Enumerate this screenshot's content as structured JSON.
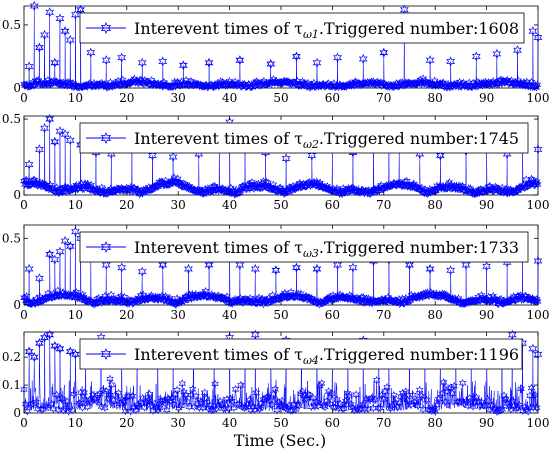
{
  "chart_data": {
    "type": "line",
    "xlabel": "Time (Sec.)",
    "x_ticks": [
      0,
      10,
      20,
      30,
      40,
      50,
      60,
      70,
      80,
      90,
      100
    ],
    "xlim": [
      0,
      100
    ],
    "grid": false,
    "legend_position": "top-right",
    "series_color": "#0000ff",
    "marker": "hexagram",
    "panels": [
      {
        "legend": {
          "prefix": "Interevent times of τ",
          "sub": "ω1",
          "suffix": ".Triggered number:1608"
        },
        "ylim": [
          0,
          0.65
        ],
        "y_ticks": [
          "0",
          "0.5"
        ],
        "y_tick_values": [
          0,
          0.5
        ],
        "triggered_number": 1608,
        "noise_level": 0.045,
        "wave_amp": 0.02,
        "peaks": [
          [
            1,
            0.17
          ],
          [
            2,
            0.65
          ],
          [
            3,
            0.32
          ],
          [
            4,
            0.42
          ],
          [
            5,
            0.6
          ],
          [
            6,
            0.2
          ],
          [
            7,
            0.55
          ],
          [
            8,
            0.45
          ],
          [
            9,
            0.38
          ],
          [
            10,
            0.58
          ],
          [
            11,
            0.62
          ],
          [
            13,
            0.28
          ],
          [
            16,
            0.22
          ],
          [
            19,
            0.24
          ],
          [
            23,
            0.2
          ],
          [
            27,
            0.21
          ],
          [
            31,
            0.18
          ],
          [
            36,
            0.2
          ],
          [
            42,
            0.22
          ],
          [
            48,
            0.19
          ],
          [
            53,
            0.25
          ],
          [
            57,
            0.2
          ],
          [
            61,
            0.24
          ],
          [
            66,
            0.23
          ],
          [
            70,
            0.28
          ],
          [
            74,
            0.62
          ],
          [
            79,
            0.22
          ],
          [
            83,
            0.21
          ],
          [
            88,
            0.25
          ],
          [
            92,
            0.27
          ],
          [
            96,
            0.3
          ],
          [
            99,
            0.45
          ],
          [
            100,
            0.4
          ]
        ]
      },
      {
        "legend": {
          "prefix": "Interevent times of τ",
          "sub": "ω2",
          "suffix": ".Triggered number:1745"
        },
        "ylim": [
          0,
          0.52
        ],
        "y_ticks": [
          "0",
          "0.5"
        ],
        "y_tick_values": [
          0,
          0.5
        ],
        "triggered_number": 1745,
        "noise_level": 0.05,
        "wave_amp": 0.04,
        "peaks": [
          [
            1,
            0.2
          ],
          [
            3,
            0.3
          ],
          [
            4,
            0.44
          ],
          [
            5,
            0.5
          ],
          [
            6,
            0.35
          ],
          [
            7,
            0.42
          ],
          [
            8,
            0.4
          ],
          [
            9,
            0.36
          ],
          [
            11,
            0.33
          ],
          [
            14,
            0.28
          ],
          [
            17,
            0.27
          ],
          [
            21,
            0.3
          ],
          [
            25,
            0.26
          ],
          [
            29,
            0.25
          ],
          [
            34,
            0.27
          ],
          [
            38,
            0.34
          ],
          [
            40,
            0.48
          ],
          [
            43,
            0.3
          ],
          [
            47,
            0.28
          ],
          [
            51,
            0.24
          ],
          [
            56,
            0.26
          ],
          [
            60,
            0.31
          ],
          [
            64,
            0.28
          ],
          [
            68,
            0.33
          ],
          [
            71,
            0.35
          ],
          [
            73,
            0.3
          ],
          [
            77,
            0.27
          ],
          [
            81,
            0.26
          ],
          [
            86,
            0.29
          ],
          [
            90,
            0.31
          ],
          [
            94,
            0.27
          ],
          [
            97,
            0.32
          ],
          [
            100,
            0.3
          ]
        ]
      },
      {
        "legend": {
          "prefix": "Interevent times of τ",
          "sub": "ω3",
          "suffix": ".Triggered number:1733"
        },
        "ylim": [
          0,
          0.6
        ],
        "y_ticks": [
          "0",
          "0.5"
        ],
        "y_tick_values": [
          0,
          0.5
        ],
        "triggered_number": 1733,
        "noise_level": 0.05,
        "wave_amp": 0.04,
        "peaks": [
          [
            1,
            0.27
          ],
          [
            3,
            0.2
          ],
          [
            5,
            0.38
          ],
          [
            6,
            0.34
          ],
          [
            7,
            0.4
          ],
          [
            8,
            0.48
          ],
          [
            9,
            0.44
          ],
          [
            10,
            0.55
          ],
          [
            11,
            0.5
          ],
          [
            13,
            0.36
          ],
          [
            16,
            0.3
          ],
          [
            19,
            0.28
          ],
          [
            23,
            0.25
          ],
          [
            27,
            0.3
          ],
          [
            32,
            0.27
          ],
          [
            36,
            0.3
          ],
          [
            40,
            0.52
          ],
          [
            42,
            0.3
          ],
          [
            45,
            0.27
          ],
          [
            49,
            0.26
          ],
          [
            53,
            0.28
          ],
          [
            57,
            0.27
          ],
          [
            61,
            0.3
          ],
          [
            64,
            0.28
          ],
          [
            68,
            0.33
          ],
          [
            71,
            0.34
          ],
          [
            75,
            0.3
          ],
          [
            79,
            0.27
          ],
          [
            83,
            0.26
          ],
          [
            86,
            0.3
          ],
          [
            90,
            0.29
          ],
          [
            94,
            0.32
          ],
          [
            97,
            0.35
          ],
          [
            100,
            0.33
          ]
        ]
      },
      {
        "legend": {
          "prefix": "Interevent times of τ",
          "sub": "ω4",
          "suffix": ".Triggered number:1196"
        },
        "ylim": [
          0,
          0.29
        ],
        "y_ticks": [
          "0",
          "0.1",
          "0.2"
        ],
        "y_tick_values": [
          0,
          0.1,
          0.2
        ],
        "triggered_number": 1196,
        "noise_level": 0.12,
        "wave_amp": 0.01,
        "peaks": [
          [
            1,
            0.22
          ],
          [
            2,
            0.2
          ],
          [
            3,
            0.25
          ],
          [
            4,
            0.27
          ],
          [
            5,
            0.28
          ],
          [
            6,
            0.24
          ],
          [
            7,
            0.23
          ],
          [
            9,
            0.22
          ],
          [
            10,
            0.21
          ],
          [
            12,
            0.2
          ],
          [
            15,
            0.27
          ],
          [
            19,
            0.2
          ],
          [
            22,
            0.22
          ],
          [
            26,
            0.24
          ],
          [
            29,
            0.2
          ],
          [
            33,
            0.22
          ],
          [
            37,
            0.24
          ],
          [
            40,
            0.27
          ],
          [
            43,
            0.21
          ],
          [
            45,
            0.28
          ],
          [
            48,
            0.22
          ],
          [
            51,
            0.26
          ],
          [
            54,
            0.24
          ],
          [
            57,
            0.22
          ],
          [
            60,
            0.21
          ],
          [
            63,
            0.24
          ],
          [
            66,
            0.26
          ],
          [
            69,
            0.22
          ],
          [
            71,
            0.25
          ],
          [
            75,
            0.23
          ],
          [
            78,
            0.21
          ],
          [
            81,
            0.22
          ],
          [
            84,
            0.24
          ],
          [
            87,
            0.21
          ],
          [
            90,
            0.22
          ],
          [
            93,
            0.24
          ],
          [
            95,
            0.28
          ],
          [
            97,
            0.25
          ],
          [
            99,
            0.23
          ],
          [
            100,
            0.21
          ]
        ]
      }
    ]
  }
}
